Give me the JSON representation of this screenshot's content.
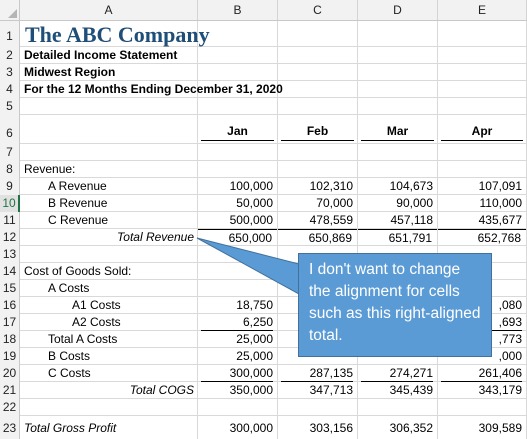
{
  "columns": [
    "A",
    "B",
    "C",
    "D",
    "E"
  ],
  "row_numbers": [
    "1",
    "2",
    "3",
    "4",
    "5",
    "6",
    "7",
    "8",
    "9",
    "10",
    "11",
    "12",
    "13",
    "14",
    "15",
    "16",
    "17",
    "18",
    "19",
    "20",
    "21",
    "22",
    "23"
  ],
  "selected_row": "10",
  "sheet": {
    "title": "The ABC Company",
    "subtitle1": "Detailed Income Statement",
    "subtitle2": "Midwest Region",
    "subtitle3": "For the 12 Months Ending December 31, 2020",
    "months": [
      "Jan",
      "Feb",
      "Mar",
      "Apr"
    ],
    "revenue_label": "Revenue:",
    "revenue_rows": [
      {
        "label": "A Revenue",
        "values": [
          "100,000",
          "102,310",
          "104,673",
          "107,091"
        ]
      },
      {
        "label": "B Revenue",
        "values": [
          "50,000",
          "70,000",
          "90,000",
          "110,000"
        ]
      },
      {
        "label": "C Revenue",
        "values": [
          "500,000",
          "478,559",
          "457,118",
          "435,677"
        ]
      }
    ],
    "total_revenue": {
      "label": "Total Revenue",
      "values": [
        "650,000",
        "650,869",
        "651,791",
        "652,768"
      ]
    },
    "cogs_label": "Cost of Goods Sold:",
    "a_costs_label": "A Costs",
    "a1": {
      "label": "A1 Costs",
      "values": [
        "18,750",
        "",
        "",
        ",080"
      ]
    },
    "a2": {
      "label": "A2 Costs",
      "values": [
        "6,250",
        "",
        "",
        ",693"
      ]
    },
    "total_a": {
      "label": "Total A Costs",
      "values": [
        "25,000",
        "",
        "",
        ",773"
      ]
    },
    "b_costs": {
      "label": "B Costs",
      "values": [
        "25,000",
        "",
        "",
        ",000"
      ]
    },
    "c_costs": {
      "label": "C Costs",
      "values": [
        "300,000",
        "287,135",
        "274,271",
        "261,406"
      ]
    },
    "total_cogs": {
      "label": "Total COGS",
      "values": [
        "350,000",
        "347,713",
        "345,439",
        "343,179"
      ]
    },
    "gross_profit": {
      "label": "Total Gross Profit",
      "values": [
        "300,000",
        "303,156",
        "306,352",
        "309,589"
      ]
    }
  },
  "callout": {
    "text": "I don't want to change the alignment for cells such as this right-aligned total."
  }
}
